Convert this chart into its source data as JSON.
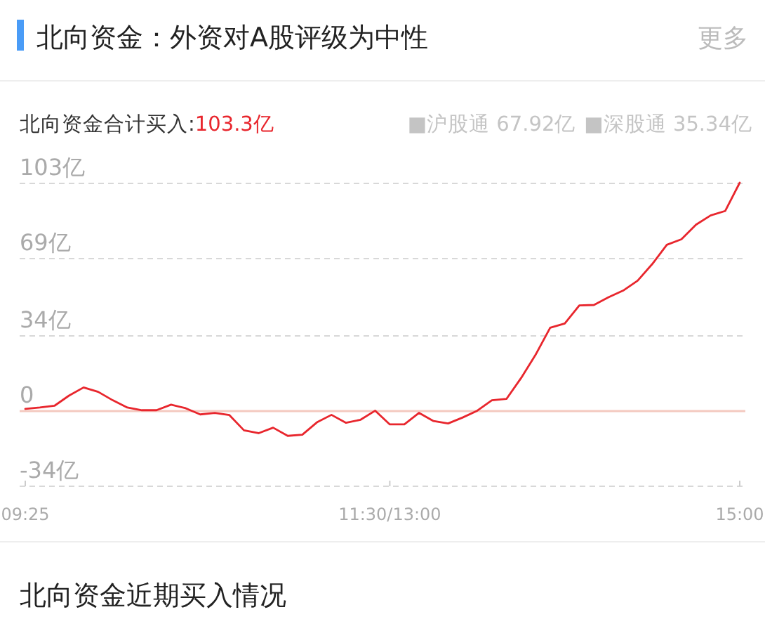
{
  "chart_data": {
    "type": "line",
    "title": "北向资金：外资对A股评级为中性",
    "annotations": [
      "更多",
      "北向资金合计买入:",
      "103.3亿",
      "■沪股通 67.92亿",
      "■深股通 35.34亿",
      "北向资金近期买入情况"
    ],
    "categories": [
      "09:25",
      null,
      null,
      null,
      null,
      null,
      null,
      null,
      null,
      null,
      null,
      null,
      null,
      null,
      null,
      null,
      null,
      null,
      null,
      null,
      null,
      null,
      null,
      null,
      null,
      "11:30/13:00",
      null,
      null,
      null,
      null,
      null,
      null,
      null,
      null,
      null,
      null,
      null,
      null,
      null,
      null,
      null,
      null,
      null,
      null,
      null,
      null,
      null,
      null,
      null,
      "15:00"
    ],
    "series": [
      {
        "color": "#e8262d",
        "values": [
          1.0,
          1.6,
          2.4,
          7.0,
          10.7,
          8.7,
          4.9,
          1.6,
          0.4,
          0.4,
          2.9,
          1.3,
          -1.5,
          -0.8,
          -1.8,
          -8.7,
          -10.0,
          -7.5,
          -11.2,
          -10.7,
          -5.1,
          -1.7,
          -5.3,
          -3.9,
          0.2,
          -6.0,
          -6.0,
          -0.8,
          -4.5,
          -5.6,
          -2.9,
          0.2,
          4.9,
          5.5,
          14.9,
          25.5,
          37.7,
          39.6,
          47.8,
          48.0,
          51.5,
          54.5,
          59.0,
          66.5,
          75.2,
          77.7,
          84.3,
          88.5,
          90.5,
          103.3
        ]
      }
    ],
    "ylim": [
      -34,
      103.3
    ],
    "yticks": [
      {
        "value": 103,
        "label": "103亿"
      },
      {
        "value": 69,
        "label": "69亿"
      },
      {
        "value": 34,
        "label": "34亿"
      },
      0,
      {
        "value": -34,
        "label": "-34亿"
      }
    ],
    "grid": "y",
    "ref_lines": [
      {
        "axis": "y",
        "value": 0,
        "color": "#f4c9c0"
      }
    ]
  }
}
